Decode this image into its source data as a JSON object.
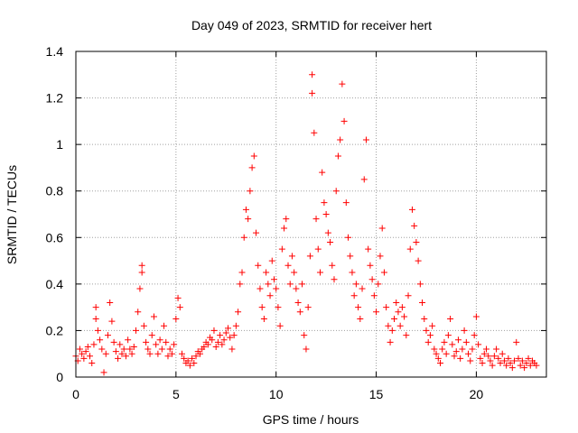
{
  "chart_data": {
    "type": "scatter",
    "title": "Day 049 of 2023, SRMTID for receiver hert",
    "xlabel": "GPS time / hours",
    "ylabel": "SRMTID / TECUs",
    "xlim": [
      0,
      23.5
    ],
    "ylim": [
      0,
      1.4
    ],
    "xticks": [
      0,
      5,
      10,
      15,
      20
    ],
    "xtick_labels": [
      "0",
      "5",
      "10",
      "15",
      "20"
    ],
    "yticks": [
      0,
      0.2,
      0.4,
      0.6,
      0.8,
      1,
      1.2,
      1.4
    ],
    "ytick_labels": [
      "0",
      "0.2",
      "0.4",
      "0.6",
      "0.8",
      "1",
      "1.2",
      "1.4"
    ],
    "grid": true,
    "marker": "+",
    "color": "#ff0000",
    "series": [
      {
        "name": "SRMTID",
        "points": [
          [
            0.0,
            0.09
          ],
          [
            0.1,
            0.07
          ],
          [
            0.2,
            0.12
          ],
          [
            0.3,
            0.1
          ],
          [
            0.4,
            0.08
          ],
          [
            0.5,
            0.11
          ],
          [
            0.6,
            0.13
          ],
          [
            0.7,
            0.09
          ],
          [
            0.8,
            0.06
          ],
          [
            0.9,
            0.14
          ],
          [
            1.0,
            0.25
          ],
          [
            1.0,
            0.3
          ],
          [
            1.1,
            0.2
          ],
          [
            1.2,
            0.16
          ],
          [
            1.3,
            0.12
          ],
          [
            1.4,
            0.02
          ],
          [
            1.5,
            0.1
          ],
          [
            1.6,
            0.18
          ],
          [
            1.7,
            0.32
          ],
          [
            1.8,
            0.24
          ],
          [
            1.9,
            0.15
          ],
          [
            2.0,
            0.11
          ],
          [
            2.1,
            0.08
          ],
          [
            2.2,
            0.14
          ],
          [
            2.3,
            0.1
          ],
          [
            2.4,
            0.12
          ],
          [
            2.5,
            0.09
          ],
          [
            2.6,
            0.16
          ],
          [
            2.7,
            0.12
          ],
          [
            2.8,
            0.1
          ],
          [
            2.9,
            0.13
          ],
          [
            3.0,
            0.2
          ],
          [
            3.1,
            0.28
          ],
          [
            3.2,
            0.38
          ],
          [
            3.3,
            0.48
          ],
          [
            3.3,
            0.45
          ],
          [
            3.4,
            0.22
          ],
          [
            3.5,
            0.15
          ],
          [
            3.6,
            0.12
          ],
          [
            3.7,
            0.1
          ],
          [
            3.8,
            0.18
          ],
          [
            3.9,
            0.26
          ],
          [
            4.0,
            0.14
          ],
          [
            4.1,
            0.1
          ],
          [
            4.2,
            0.16
          ],
          [
            4.3,
            0.12
          ],
          [
            4.4,
            0.22
          ],
          [
            4.5,
            0.15
          ],
          [
            4.6,
            0.09
          ],
          [
            4.7,
            0.12
          ],
          [
            4.8,
            0.1
          ],
          [
            4.9,
            0.14
          ],
          [
            5.0,
            0.25
          ],
          [
            5.1,
            0.34
          ],
          [
            5.2,
            0.3
          ],
          [
            5.3,
            0.1
          ],
          [
            5.4,
            0.08
          ],
          [
            5.5,
            0.06
          ],
          [
            5.6,
            0.07
          ],
          [
            5.7,
            0.05
          ],
          [
            5.8,
            0.08
          ],
          [
            5.9,
            0.06
          ],
          [
            6.0,
            0.09
          ],
          [
            6.1,
            0.11
          ],
          [
            6.2,
            0.1
          ],
          [
            6.3,
            0.12
          ],
          [
            6.4,
            0.13
          ],
          [
            6.5,
            0.15
          ],
          [
            6.6,
            0.14
          ],
          [
            6.7,
            0.17
          ],
          [
            6.8,
            0.16
          ],
          [
            6.9,
            0.2
          ],
          [
            7.0,
            0.13
          ],
          [
            7.1,
            0.15
          ],
          [
            7.2,
            0.18
          ],
          [
            7.3,
            0.14
          ],
          [
            7.4,
            0.16
          ],
          [
            7.5,
            0.19
          ],
          [
            7.6,
            0.21
          ],
          [
            7.7,
            0.17
          ],
          [
            7.8,
            0.12
          ],
          [
            7.9,
            0.18
          ],
          [
            8.0,
            0.22
          ],
          [
            8.1,
            0.28
          ],
          [
            8.2,
            0.4
          ],
          [
            8.3,
            0.45
          ],
          [
            8.4,
            0.6
          ],
          [
            8.5,
            0.72
          ],
          [
            8.6,
            0.68
          ],
          [
            8.7,
            0.8
          ],
          [
            8.8,
            0.9
          ],
          [
            8.9,
            0.95
          ],
          [
            9.0,
            0.62
          ],
          [
            9.1,
            0.48
          ],
          [
            9.2,
            0.38
          ],
          [
            9.3,
            0.3
          ],
          [
            9.4,
            0.25
          ],
          [
            9.5,
            0.45
          ],
          [
            9.6,
            0.4
          ],
          [
            9.7,
            0.35
          ],
          [
            9.8,
            0.5
          ],
          [
            9.9,
            0.42
          ],
          [
            10.0,
            0.38
          ],
          [
            10.1,
            0.3
          ],
          [
            10.2,
            0.22
          ],
          [
            10.3,
            0.55
          ],
          [
            10.4,
            0.64
          ],
          [
            10.5,
            0.68
          ],
          [
            10.6,
            0.48
          ],
          [
            10.7,
            0.4
          ],
          [
            10.8,
            0.52
          ],
          [
            10.9,
            0.45
          ],
          [
            11.0,
            0.38
          ],
          [
            11.1,
            0.32
          ],
          [
            11.2,
            0.28
          ],
          [
            11.3,
            0.4
          ],
          [
            11.4,
            0.18
          ],
          [
            11.5,
            0.12
          ],
          [
            11.6,
            0.3
          ],
          [
            11.7,
            0.52
          ],
          [
            11.8,
            1.3
          ],
          [
            11.8,
            1.22
          ],
          [
            11.9,
            1.05
          ],
          [
            12.0,
            0.68
          ],
          [
            12.1,
            0.55
          ],
          [
            12.2,
            0.45
          ],
          [
            12.3,
            0.88
          ],
          [
            12.4,
            0.75
          ],
          [
            12.5,
            0.7
          ],
          [
            12.6,
            0.62
          ],
          [
            12.7,
            0.58
          ],
          [
            12.8,
            0.48
          ],
          [
            12.9,
            0.42
          ],
          [
            13.0,
            0.8
          ],
          [
            13.1,
            0.95
          ],
          [
            13.2,
            1.02
          ],
          [
            13.3,
            1.26
          ],
          [
            13.4,
            1.1
          ],
          [
            13.5,
            0.75
          ],
          [
            13.6,
            0.6
          ],
          [
            13.7,
            0.52
          ],
          [
            13.8,
            0.45
          ],
          [
            13.9,
            0.35
          ],
          [
            14.0,
            0.4
          ],
          [
            14.1,
            0.3
          ],
          [
            14.2,
            0.25
          ],
          [
            14.3,
            0.38
          ],
          [
            14.4,
            0.85
          ],
          [
            14.5,
            1.02
          ],
          [
            14.6,
            0.55
          ],
          [
            14.7,
            0.48
          ],
          [
            14.8,
            0.42
          ],
          [
            14.9,
            0.35
          ],
          [
            15.0,
            0.28
          ],
          [
            15.1,
            0.4
          ],
          [
            15.2,
            0.52
          ],
          [
            15.3,
            0.64
          ],
          [
            15.4,
            0.45
          ],
          [
            15.5,
            0.3
          ],
          [
            15.6,
            0.22
          ],
          [
            15.7,
            0.15
          ],
          [
            15.8,
            0.2
          ],
          [
            15.9,
            0.25
          ],
          [
            16.0,
            0.32
          ],
          [
            16.1,
            0.28
          ],
          [
            16.2,
            0.22
          ],
          [
            16.3,
            0.3
          ],
          [
            16.4,
            0.26
          ],
          [
            16.5,
            0.18
          ],
          [
            16.6,
            0.35
          ],
          [
            16.7,
            0.55
          ],
          [
            16.8,
            0.72
          ],
          [
            16.9,
            0.65
          ],
          [
            17.0,
            0.58
          ],
          [
            17.1,
            0.5
          ],
          [
            17.2,
            0.4
          ],
          [
            17.3,
            0.32
          ],
          [
            17.4,
            0.25
          ],
          [
            17.5,
            0.2
          ],
          [
            17.6,
            0.15
          ],
          [
            17.7,
            0.18
          ],
          [
            17.8,
            0.22
          ],
          [
            17.9,
            0.12
          ],
          [
            18.0,
            0.1
          ],
          [
            18.1,
            0.08
          ],
          [
            18.2,
            0.06
          ],
          [
            18.3,
            0.12
          ],
          [
            18.4,
            0.15
          ],
          [
            18.5,
            0.1
          ],
          [
            18.6,
            0.18
          ],
          [
            18.7,
            0.25
          ],
          [
            18.8,
            0.14
          ],
          [
            18.9,
            0.09
          ],
          [
            19.0,
            0.11
          ],
          [
            19.1,
            0.16
          ],
          [
            19.2,
            0.08
          ],
          [
            19.3,
            0.12
          ],
          [
            19.4,
            0.2
          ],
          [
            19.5,
            0.15
          ],
          [
            19.6,
            0.1
          ],
          [
            19.7,
            0.07
          ],
          [
            19.8,
            0.12
          ],
          [
            19.9,
            0.18
          ],
          [
            20.0,
            0.26
          ],
          [
            20.1,
            0.14
          ],
          [
            20.2,
            0.08
          ],
          [
            20.3,
            0.06
          ],
          [
            20.4,
            0.1
          ],
          [
            20.5,
            0.12
          ],
          [
            20.6,
            0.09
          ],
          [
            20.7,
            0.07
          ],
          [
            20.8,
            0.05
          ],
          [
            20.9,
            0.09
          ],
          [
            21.0,
            0.12
          ],
          [
            21.1,
            0.08
          ],
          [
            21.2,
            0.06
          ],
          [
            21.3,
            0.1
          ],
          [
            21.4,
            0.07
          ],
          [
            21.5,
            0.05
          ],
          [
            21.6,
            0.08
          ],
          [
            21.7,
            0.06
          ],
          [
            21.8,
            0.04
          ],
          [
            21.9,
            0.07
          ],
          [
            22.0,
            0.15
          ],
          [
            22.1,
            0.08
          ],
          [
            22.2,
            0.05
          ],
          [
            22.3,
            0.07
          ],
          [
            22.4,
            0.04
          ],
          [
            22.5,
            0.06
          ],
          [
            22.6,
            0.08
          ],
          [
            22.7,
            0.05
          ],
          [
            22.8,
            0.07
          ],
          [
            22.9,
            0.06
          ],
          [
            23.0,
            0.05
          ]
        ]
      }
    ]
  }
}
